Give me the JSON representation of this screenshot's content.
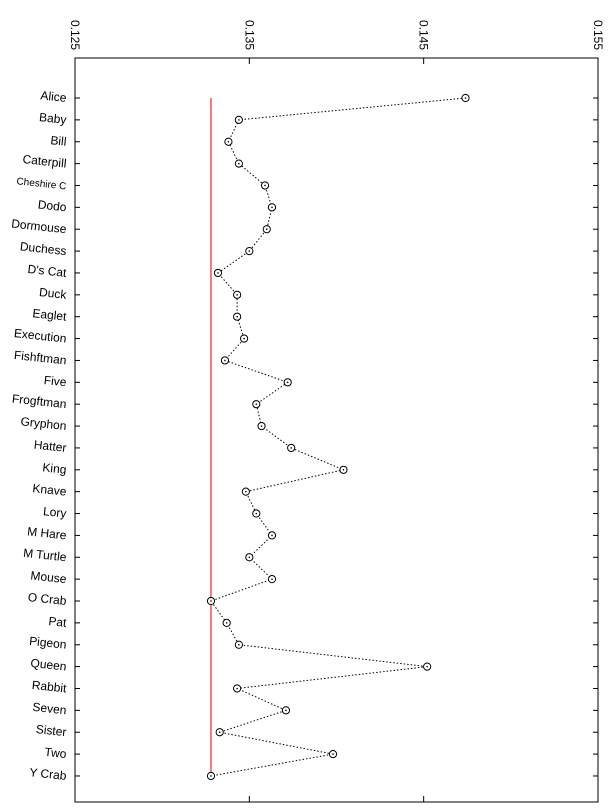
{
  "chart_data": {
    "type": "scatter",
    "title": "",
    "xlabel": "",
    "ylabel": "",
    "xlim": [
      0.125,
      0.155
    ],
    "x_ticks": [
      "0.125",
      "0.135",
      "0.145",
      "0.155"
    ],
    "x_tick_values": [
      0.125,
      0.135,
      0.145,
      0.155
    ],
    "grid": false,
    "legend": "none",
    "reference_line": {
      "value": 0.1328,
      "color": "#dd0000"
    },
    "series": [
      {
        "categories": [
          "Alice",
          "Baby",
          "Bill",
          "Caterpill",
          "Cheshire C",
          "Dodo",
          "Dormouse",
          "Duchess",
          "D's Cat",
          "Duck",
          "Eaglet",
          "Execution",
          "Fishftman",
          "Five",
          "Frogftman",
          "Gryphon",
          "Hatter",
          "King",
          "Knave",
          "Lory",
          "M Hare",
          "M Turtle",
          "Mouse",
          "O Crab",
          "Pat",
          "Pigeon",
          "Queen",
          "Rabbit",
          "Seven",
          "Sister",
          "Two",
          "Y Crab"
        ],
        "values": [
          0.1474,
          0.1344,
          0.1338,
          0.1344,
          0.1359,
          0.1363,
          0.136,
          0.135,
          0.1332,
          0.1343,
          0.1343,
          0.1347,
          0.1336,
          0.1372,
          0.1354,
          0.1357,
          0.1374,
          0.1404,
          0.1348,
          0.1354,
          0.1363,
          0.135,
          0.1363,
          0.1328,
          0.1337,
          0.1344,
          0.1452,
          0.1343,
          0.1371,
          0.1333,
          0.1398,
          0.1328
        ],
        "color": "#000000"
      }
    ]
  }
}
